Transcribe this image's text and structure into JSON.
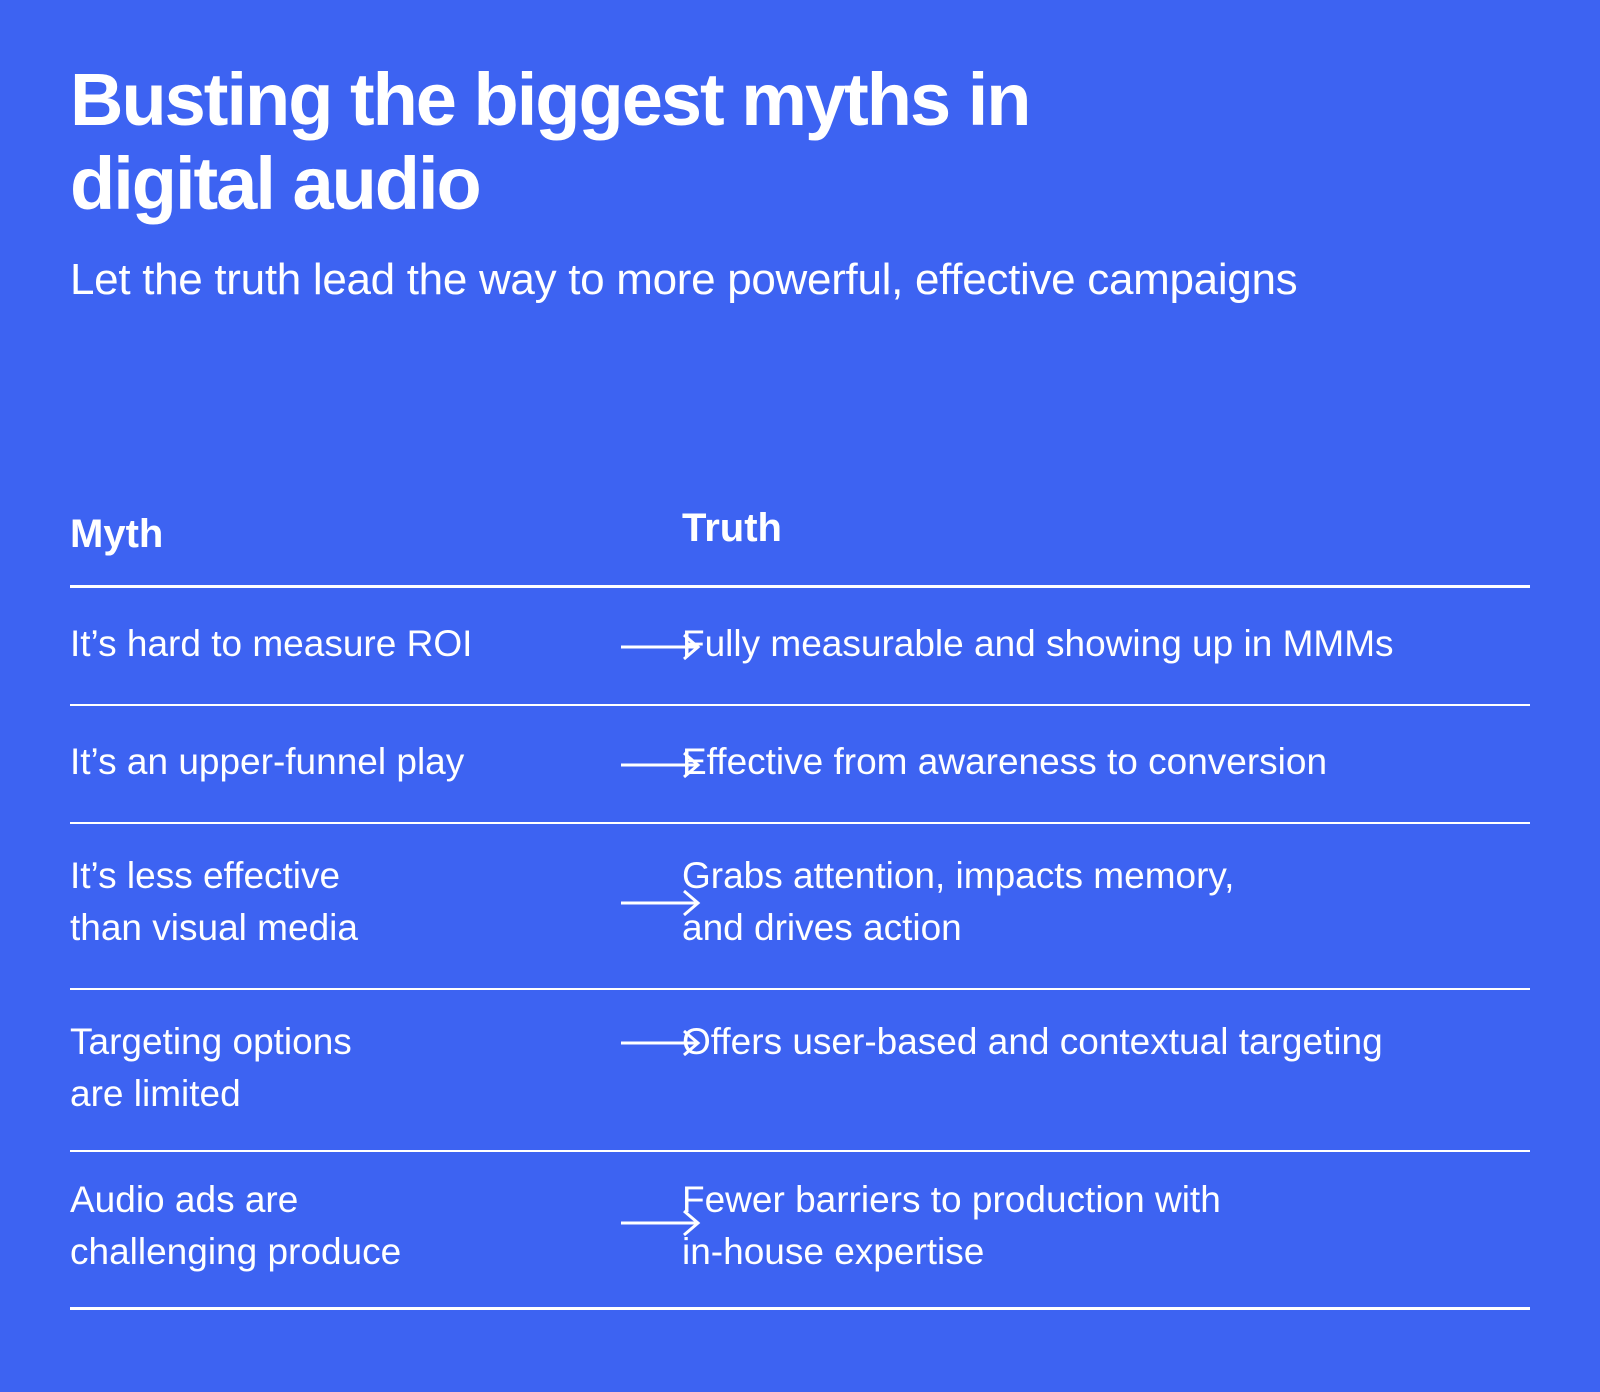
{
  "header": {
    "title": "Busting the biggest myths in digital audio",
    "subtitle": "Let the truth lead the way to more powerful, effective campaigns"
  },
  "table": {
    "columns": {
      "myth": "Myth",
      "truth": "Truth"
    },
    "rows": [
      {
        "myth": "It’s hard to measure ROI",
        "truth": "Fully measurable and showing up in MMMs"
      },
      {
        "myth": "It’s an upper-funnel play",
        "truth": "Effective from awareness to conversion"
      },
      {
        "myth": "It’s less effective\nthan visual media",
        "truth": "Grabs attention, impacts memory,\nand drives action"
      },
      {
        "myth": "Targeting options\nare limited",
        "truth": "Offers user-based and contextual targeting"
      },
      {
        "myth": "Audio ads are\nchallenging produce",
        "truth": "Fewer barriers to production with\nin-house expertise"
      }
    ],
    "arrow_icon": "long-right-arrow-icon"
  },
  "colors": {
    "background": "#3d63f2",
    "text": "#ffffff"
  }
}
